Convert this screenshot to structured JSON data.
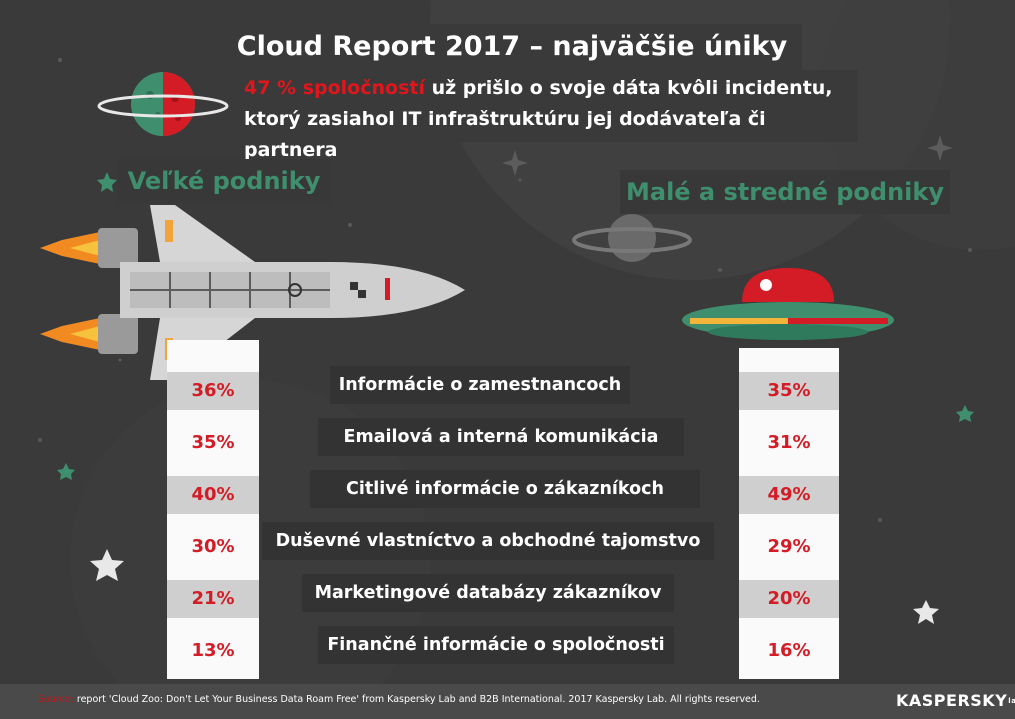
{
  "title": "Cloud Report 2017 – najväčšie úniky",
  "subtitle": {
    "highlight": "47 % spoločností",
    "line1_rest": "už prišlo o svoje dáta kvôli incidentu,",
    "line2": "ktorý zasiahol IT infraštruktúru jej dodávateľa či partnera"
  },
  "chart_data": {
    "type": "table",
    "title": "Cloud Report 2017 – najväčšie úniky",
    "columns": [
      "Veľké podniky",
      "",
      "Malé a stredné podniky"
    ],
    "series": [
      {
        "name": "Veľké podniky",
        "values": [
          "36%",
          "35%",
          "40%",
          "30%",
          "21%",
          "13%"
        ]
      },
      {
        "name": "Malé a stredné podniky",
        "values": [
          "35%",
          "31%",
          "49%",
          "29%",
          "20%",
          "16%"
        ]
      }
    ],
    "categories": [
      "Informácie o zamestnancoch",
      "Emailová a interná komunikácia",
      "Citlivé informácie o zákazníkoch",
      "Duševné vlastníctvo a obchodné tajomstvo",
      "Marketingové databázy zákazníkov",
      "Finančné informácie o spoločnosti"
    ],
    "rows": [
      {
        "category": "Informácie o zamestnancoch",
        "large": "36%",
        "smb": "35%"
      },
      {
        "category": "Emailová a interná komunikácia",
        "large": "35%",
        "smb": "31%"
      },
      {
        "category": "Citlivé informácie o zákazníkoch",
        "large": "40%",
        "smb": "49%"
      },
      {
        "category": "Duševné vlastníctvo a obchodné tajomstvo",
        "large": "30%",
        "smb": "29%"
      },
      {
        "category": "Marketingové databázy zákazníkov",
        "large": "21%",
        "smb": "20%"
      },
      {
        "category": "Finančné informácie o spoločnosti",
        "large": "13%",
        "smb": "16%"
      }
    ]
  },
  "footer": {
    "source_label": "Source:",
    "source_text": "report 'Cloud Zoo: Don't Let Your Business Data Roam Free' from Kaspersky Lab and B2B International. 2017 Kaspersky Lab. All rights reserved."
  },
  "brand": {
    "name": "KASPERSKY",
    "suffix": "lab"
  },
  "colors": {
    "background": "#3a3a3a",
    "accent_red": "#d31c25",
    "group_green": "#3f8f6f",
    "band_grey": "#cfcfcf"
  },
  "icons": [
    "planet-icon",
    "space-shuttle-icon",
    "ufo-icon",
    "saturn-icon",
    "star-icon"
  ]
}
